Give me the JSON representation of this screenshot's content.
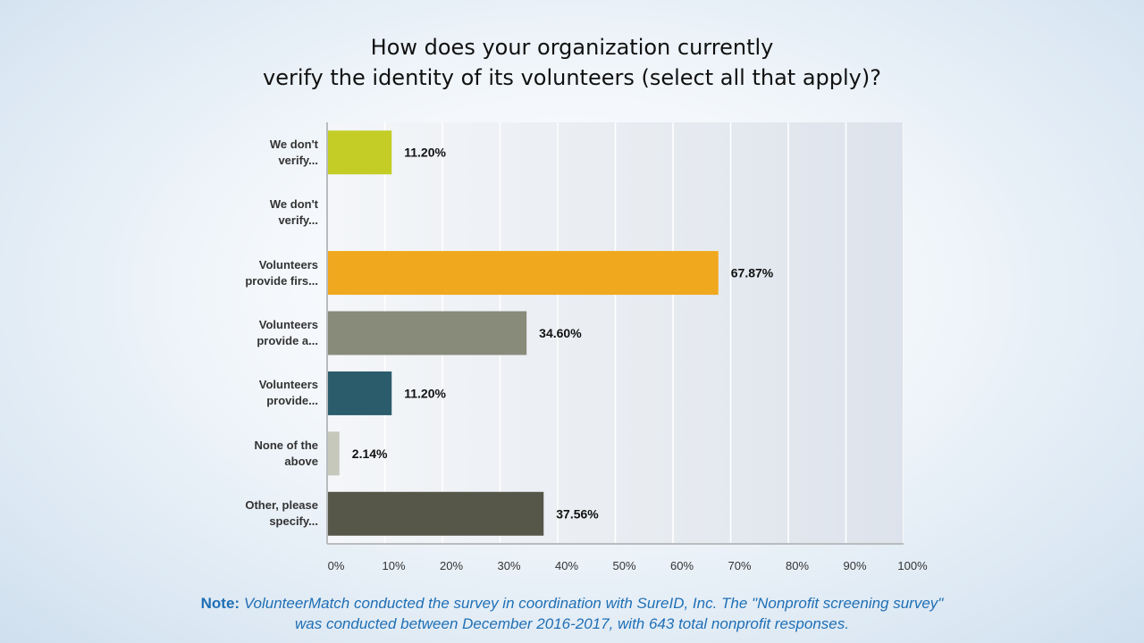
{
  "title_line1": "How does your organization currently",
  "title_line2": "verify the identity of its volunteers (select all that apply)?",
  "note": {
    "lead": "Note:",
    "line1": "VolunteerMatch conducted the survey in coordination with SureID, Inc. The \"Nonprofit screening survey\"",
    "line2": "was conducted between December 2016-2017, with 643 total nonprofit responses."
  },
  "chart_data": {
    "type": "bar",
    "orientation": "horizontal",
    "categories": [
      [
        "We don't",
        "verify..."
      ],
      [
        "We don't",
        "verify..."
      ],
      [
        "Volunteers",
        "provide firs..."
      ],
      [
        "Volunteers",
        "provide a..."
      ],
      [
        "Volunteers",
        "provide..."
      ],
      [
        "None of the",
        "above"
      ],
      [
        "Other, please",
        "specify..."
      ]
    ],
    "values": [
      11.2,
      0,
      67.87,
      34.6,
      11.2,
      2.14,
      37.56
    ],
    "value_labels": [
      "11.20%",
      "",
      "67.87%",
      "34.60%",
      "11.20%",
      "2.14%",
      "37.56%"
    ],
    "colors": [
      "#c3cd25",
      "#c3cd25",
      "#f0a81e",
      "#888a7a",
      "#2b5c6c",
      "#c7c8bc",
      "#565649"
    ],
    "xlim": [
      0,
      100
    ],
    "x_ticks": [
      "0%",
      "10%",
      "20%",
      "30%",
      "40%",
      "50%",
      "60%",
      "70%",
      "80%",
      "90%",
      "100%"
    ],
    "grid": true,
    "legend": "none"
  }
}
